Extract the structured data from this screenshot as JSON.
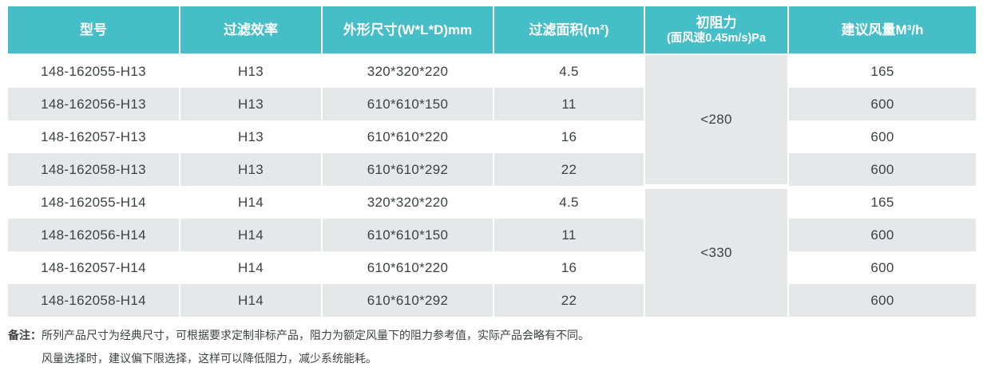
{
  "table": {
    "headers": [
      {
        "label": "型号"
      },
      {
        "label": "过滤效率"
      },
      {
        "label": "外形尺寸(W*L*D)mm"
      },
      {
        "label": "过滤面积(m²)"
      },
      {
        "label": "初阻力",
        "sub": "(面风速0.45m/s)Pa"
      },
      {
        "label": "建议风量M³/h"
      }
    ],
    "rows": [
      {
        "model": "148-162055-H13",
        "efficiency": "H13",
        "dimensions": "320*320*220",
        "area": "4.5",
        "airflow": "165"
      },
      {
        "model": "148-162056-H13",
        "efficiency": "H13",
        "dimensions": "610*610*150",
        "area": "11",
        "airflow": "600"
      },
      {
        "model": "148-162057-H13",
        "efficiency": "H13",
        "dimensions": "610*610*220",
        "area": "16",
        "airflow": "600"
      },
      {
        "model": "148-162058-H13",
        "efficiency": "H13",
        "dimensions": "610*610*292",
        "area": "22",
        "airflow": "600"
      },
      {
        "model": "148-162055-H14",
        "efficiency": "H14",
        "dimensions": "320*320*220",
        "area": "4.5",
        "airflow": "165"
      },
      {
        "model": "148-162056-H14",
        "efficiency": "H14",
        "dimensions": "610*610*150",
        "area": "11",
        "airflow": "600"
      },
      {
        "model": "148-162057-H14",
        "efficiency": "H14",
        "dimensions": "610*610*220",
        "area": "16",
        "airflow": "600"
      },
      {
        "model": "148-162058-H14",
        "efficiency": "H14",
        "dimensions": "610*610*292",
        "area": "22",
        "airflow": "600"
      }
    ],
    "resistance_groups": [
      {
        "value": "<280"
      },
      {
        "value": "<330"
      }
    ]
  },
  "notes": {
    "label": "备注：",
    "line1": "所列产品尺寸为经典尺寸，可根据要求定制非标产品，阻力为额定风量下的阻力参考值，实际产品会略有不同。",
    "line2": "风量选择时，建议偏下限选择，这样可以降低阻力，减少系统能耗。"
  },
  "colors": {
    "header_bg": "#45bec7",
    "row_alt_bg": "#e6e7e9",
    "body_text": "#3f4043",
    "header_text": "#ffffff"
  }
}
